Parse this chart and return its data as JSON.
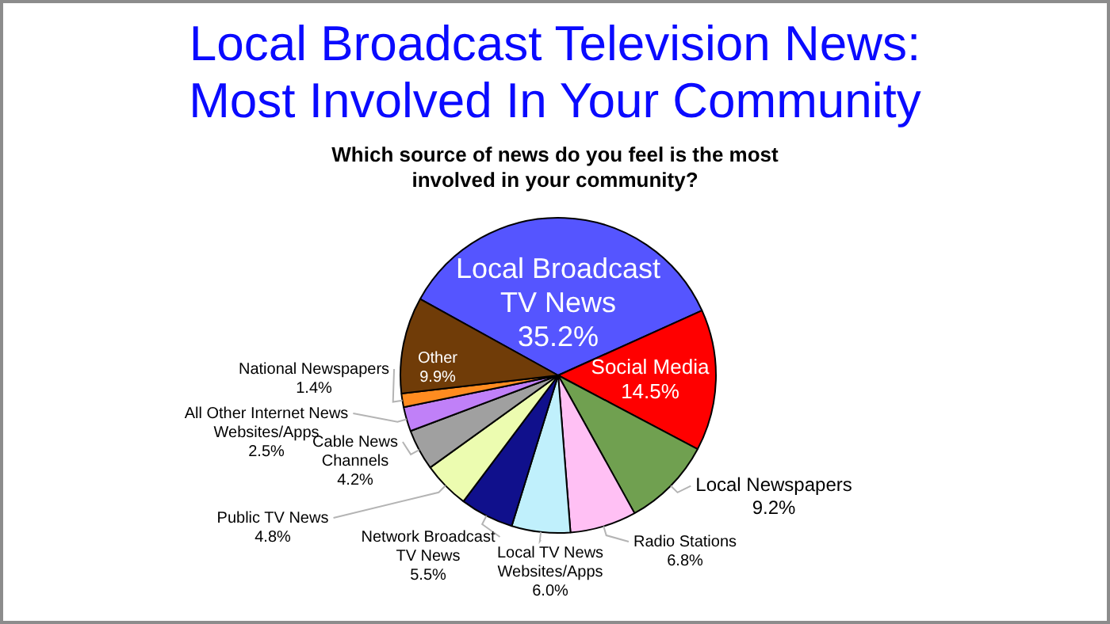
{
  "chart_data": {
    "type": "pie",
    "title": "Local Broadcast Television News: Most Involved In Your Community",
    "subtitle": "Which source of news do you feel is the most involved in your community?",
    "categories": [
      "Local Broadcast TV News",
      "Social Media",
      "Local Newspapers",
      "Radio Stations",
      "Local TV News Websites/Apps",
      "Network Broadcast TV News",
      "Public TV News",
      "Cable News Channels",
      "All Other Internet News Websites/Apps",
      "National Newspapers",
      "Other"
    ],
    "values": [
      35.2,
      14.5,
      9.2,
      6.8,
      6.0,
      5.5,
      4.8,
      4.2,
      2.5,
      1.4,
      9.9
    ],
    "value_labels": [
      "35.2%",
      "14.5%",
      "9.2%",
      "6.8%",
      "6.0%",
      "5.5%",
      "4.8%",
      "4.2%",
      "2.5%",
      "1.4%",
      "9.9%"
    ],
    "colors": [
      "#5555ff",
      "#ff0000",
      "#70a050",
      "#ffc0f4",
      "#c0f0fc",
      "#10108c",
      "#ecfcb0",
      "#a0a0a0",
      "#c080f8",
      "#ff8c20",
      "#703c08"
    ]
  }
}
